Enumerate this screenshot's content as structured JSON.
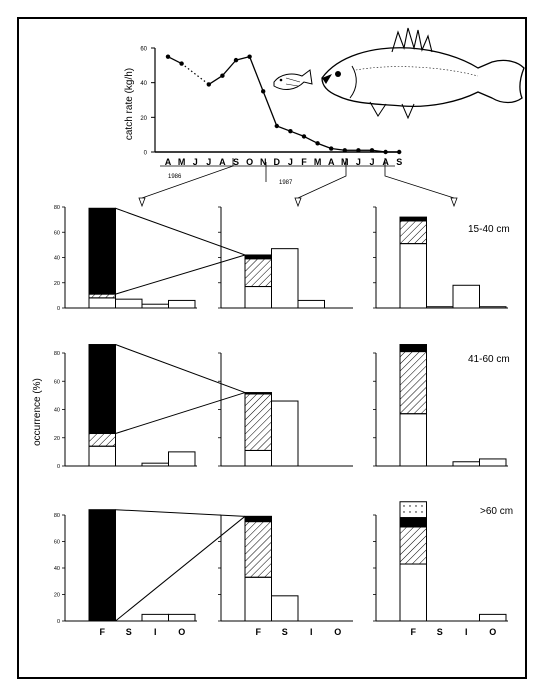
{
  "catch_chart": {
    "ylabel": "catch rate (kg/h)",
    "y_ticks": [
      "0",
      "20",
      "40",
      "60"
    ],
    "months": [
      "A",
      "M",
      "J",
      "J",
      "A",
      "S",
      "O",
      "N",
      "D",
      "J",
      "F",
      "M",
      "A",
      "M",
      "J",
      "J",
      "A",
      "S"
    ],
    "year_labels": [
      "1986",
      "1987"
    ]
  },
  "occurrence_panels": {
    "ylabel": "occurrence (%)",
    "y_ticks": [
      "0",
      "20",
      "40",
      "60",
      "80"
    ],
    "categories": [
      "F",
      "S",
      "I",
      "O"
    ],
    "rows": [
      {
        "size_label": "15-40 cm"
      },
      {
        "size_label": "41-60 cm"
      },
      {
        "size_label": ">60 cm"
      }
    ]
  },
  "chart_data": [
    {
      "type": "line",
      "xlabel": "",
      "ylabel": "catch rate (kg/h)",
      "ylim": [
        0,
        60
      ],
      "x": [
        "A",
        "M",
        "J",
        "J",
        "A",
        "S",
        "O",
        "N",
        "D",
        "J",
        "F",
        "M",
        "A",
        "M",
        "J",
        "J",
        "A",
        "S"
      ],
      "x_years": {
        "1986": "A–D",
        "1987": "J–S"
      },
      "series": [
        {
          "values": [
            55,
            51,
            null,
            39,
            44,
            53,
            55,
            35,
            15,
            12,
            9,
            5,
            2,
            1,
            1,
            1,
            0,
            0
          ]
        }
      ],
      "gap_between": [
        "M",
        "J"
      ]
    },
    {
      "type": "bar",
      "stacked_segments": [
        "empty",
        "hatched",
        "black",
        "dotted"
      ],
      "categories": [
        "F",
        "S",
        "I",
        "O"
      ],
      "ylim": [
        0,
        80
      ],
      "size_class": "15-40 cm",
      "periods": [
        {
          "F": [
            8,
            3,
            68,
            0
          ],
          "S": 7,
          "I": 3,
          "O": 6
        },
        {
          "F": [
            17,
            22,
            3,
            0
          ],
          "S": 47,
          "I": 6,
          "O": 0
        },
        {
          "F": [
            51,
            18,
            3,
            0
          ],
          "S": 1,
          "I": 18,
          "O": 1
        }
      ]
    },
    {
      "type": "bar",
      "stacked_segments": [
        "empty",
        "hatched",
        "black",
        "dotted"
      ],
      "categories": [
        "F",
        "S",
        "I",
        "O"
      ],
      "ylim": [
        0,
        80
      ],
      "size_class": "41-60 cm",
      "periods": [
        {
          "F": [
            14,
            9,
            63,
            0
          ],
          "S": 0,
          "I": 2,
          "O": 10
        },
        {
          "F": [
            11,
            40,
            1,
            0
          ],
          "S": 46,
          "I": 0,
          "O": 0
        },
        {
          "F": [
            37,
            44,
            5,
            0
          ],
          "S": 0,
          "I": 3,
          "O": 5
        }
      ]
    },
    {
      "type": "bar",
      "stacked_segments": [
        "empty",
        "hatched",
        "black",
        "dotted"
      ],
      "categories": [
        "F",
        "S",
        "I",
        "O"
      ],
      "ylim": [
        0,
        80
      ],
      "size_class": ">60 cm",
      "periods": [
        {
          "F": [
            0,
            0,
            84,
            0
          ],
          "S": 0,
          "I": 5,
          "O": 5
        },
        {
          "F": [
            33,
            42,
            4,
            0
          ],
          "S": 19,
          "I": 0,
          "O": 0
        },
        {
          "F": [
            43,
            28,
            7,
            12
          ],
          "S": 0,
          "I": 0,
          "O": 5
        }
      ]
    }
  ]
}
